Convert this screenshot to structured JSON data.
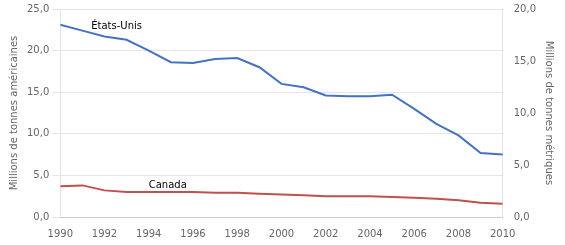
{
  "chart_data": {
    "type": "line",
    "x": [
      1990,
      1991,
      1992,
      1993,
      1994,
      1995,
      1996,
      1997,
      1998,
      1999,
      2000,
      2001,
      2002,
      2003,
      2004,
      2005,
      2006,
      2007,
      2008,
      2009,
      2010
    ],
    "series": [
      {
        "color": "#4472C4",
        "values": [
          23.1,
          22.4,
          21.7,
          21.3,
          20.0,
          18.6,
          18.5,
          19.0,
          19.1,
          18.0,
          16.0,
          15.6,
          14.6,
          14.5,
          14.5,
          14.7,
          13.0,
          11.2,
          9.8,
          7.7,
          7.5
        ]
      },
      {
        "color": "#C0504D",
        "values": [
          3.7,
          3.8,
          3.2,
          3.0,
          3.0,
          3.0,
          3.0,
          2.9,
          2.9,
          2.8,
          2.7,
          2.6,
          2.5,
          2.5,
          2.5,
          2.4,
          2.3,
          2.2,
          2.0,
          1.7,
          1.6
        ]
      }
    ],
    "y_label": "Millions de tonnes américaines",
    "y2_label": "Millions de tonnes métriques",
    "xlim": [
      1990,
      2010
    ],
    "xticks": [
      1990,
      1992,
      1994,
      1996,
      1998,
      2000,
      2002,
      2004,
      2006,
      2008,
      2010
    ],
    "ylim": [
      0,
      25
    ],
    "yticks": [
      {
        "value": 0,
        "label": "0,0"
      },
      {
        "value": 5,
        "label": "5,0"
      },
      {
        "value": 10,
        "label": "10,0"
      },
      {
        "value": 15,
        "label": "15,0"
      },
      {
        "value": 20,
        "label": "20,0"
      },
      {
        "value": 25,
        "label": "25,0"
      }
    ],
    "y2lim": [
      0,
      20
    ],
    "y2ticks": [
      {
        "value": 0,
        "label": "0,0"
      },
      {
        "value": 5,
        "label": "5,0"
      },
      {
        "value": 10,
        "label": "10,0"
      },
      {
        "value": 15,
        "label": "15,0"
      },
      {
        "value": 20,
        "label": "20,0"
      }
    ],
    "grid": true,
    "annotations": [
      {
        "text": "États-Unis",
        "x": 1991.4,
        "y": 22.3
      },
      {
        "text": "Canada",
        "x": 1994.0,
        "y": 3.25
      }
    ]
  }
}
